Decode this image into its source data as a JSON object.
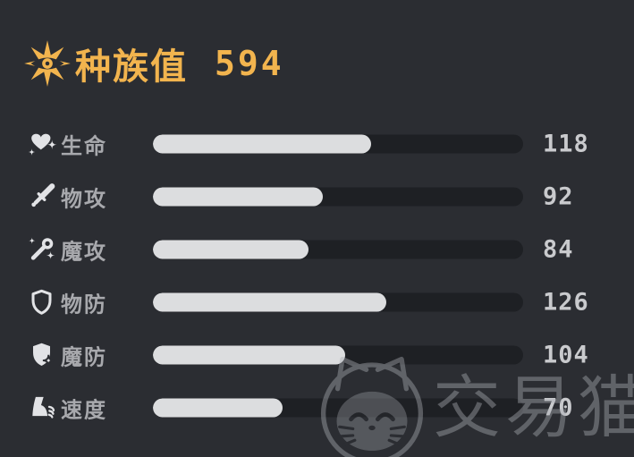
{
  "header": {
    "icon": "star-eye-icon",
    "title": "种族值",
    "total": "594"
  },
  "stats": {
    "bar_max": 200,
    "rows": [
      {
        "icon": "heart-icon",
        "label": "生命",
        "value": 118
      },
      {
        "icon": "sword-icon",
        "label": "物攻",
        "value": 92
      },
      {
        "icon": "wand-icon",
        "label": "魔攻",
        "value": 84
      },
      {
        "icon": "shield-icon",
        "label": "物防",
        "value": 126
      },
      {
        "icon": "shield-sparkle-icon",
        "label": "魔防",
        "value": 104
      },
      {
        "icon": "speed-icon",
        "label": "速度",
        "value": 70
      }
    ]
  },
  "watermark": {
    "logo": "cat-logo-icon",
    "text": "交易猫"
  },
  "colors": {
    "background": "#2B2D32",
    "accent_gold": "#F2B44E",
    "bar_track": "#1E2024",
    "bar_fill": "#DCDDDF",
    "label_text": "#A8A9AD",
    "value_text": "#C9CACD"
  }
}
